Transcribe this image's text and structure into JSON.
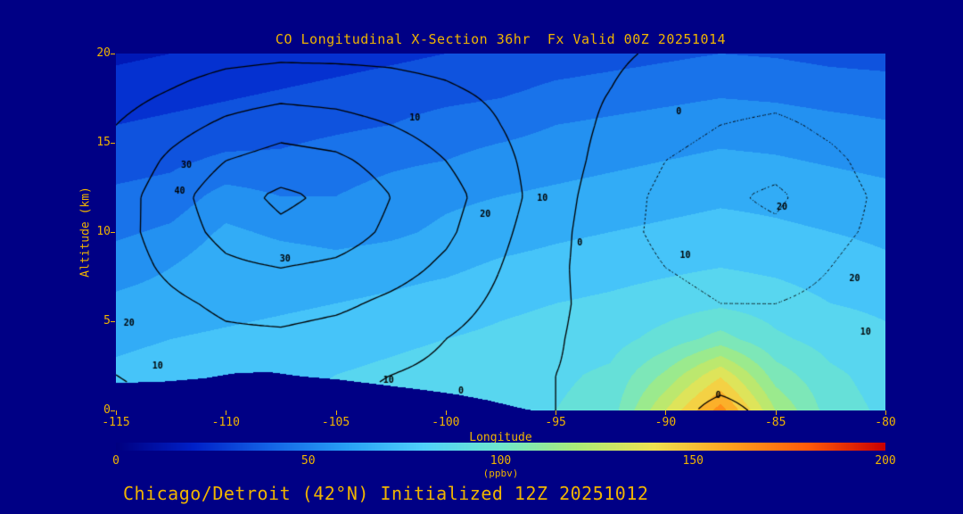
{
  "title": "CO Longitudinal X-Section 36hr  Fx Valid 00Z 20251014",
  "footer": "Chicago/Detroit (42°N) Initialized 12Z 20251012",
  "colors": {
    "background": "#000085",
    "text": "#f0b400",
    "terrain": "#000085",
    "contour_line": "#000000"
  },
  "axes": {
    "xlabel": "Longitude",
    "ylabel": "Altitude (km)",
    "x_ticks": [
      "-115",
      "-110",
      "-105",
      "-100",
      "-95",
      "-90",
      "-85",
      "-80"
    ],
    "y_ticks": [
      "0",
      "5",
      "10",
      "15",
      "20"
    ],
    "x_range": [
      -115,
      -80
    ],
    "y_range": [
      0,
      20
    ]
  },
  "colorbar": {
    "ticks": [
      "0",
      "50",
      "100",
      "150",
      "200"
    ],
    "label": "(ppbv)",
    "range": [
      0,
      200
    ],
    "stops": [
      [
        0,
        "#000080"
      ],
      [
        20,
        "#0020c8"
      ],
      [
        40,
        "#1464e6"
      ],
      [
        60,
        "#28a0f5"
      ],
      [
        80,
        "#50d0fa"
      ],
      [
        100,
        "#6ee6cd"
      ],
      [
        120,
        "#aaeb78"
      ],
      [
        140,
        "#f0e150"
      ],
      [
        160,
        "#ffa01e"
      ],
      [
        180,
        "#ff5a0a"
      ],
      [
        200,
        "#c80000"
      ]
    ]
  },
  "chart_data": {
    "type": "heatmap",
    "title": "CO Longitudinal X-Section 36hr  Fx Valid 00Z 20251014",
    "xlabel": "Longitude",
    "ylabel": "Altitude (km)",
    "x_range": [
      -115,
      -80
    ],
    "y_range": [
      0,
      20
    ],
    "value_units": "ppbv",
    "value_range": [
      0,
      200
    ],
    "x": [
      -115,
      -112.5,
      -110,
      -107.5,
      -105,
      -102.5,
      -100,
      -97.5,
      -95,
      -92.5,
      -90,
      -87.5,
      -85,
      -82.5,
      -80
    ],
    "y": [
      0,
      2,
      4,
      6,
      8,
      10,
      12,
      14,
      16,
      18,
      20
    ],
    "fill_values_ppbv": [
      [
        75,
        78,
        80,
        80,
        82,
        84,
        85,
        88,
        90,
        95,
        130,
        165,
        120,
        95,
        88
      ],
      [
        72,
        74,
        76,
        78,
        80,
        82,
        84,
        86,
        88,
        92,
        112,
        138,
        105,
        92,
        86
      ],
      [
        68,
        70,
        72,
        74,
        76,
        78,
        80,
        82,
        84,
        86,
        94,
        104,
        92,
        86,
        82
      ],
      [
        62,
        64,
        66,
        68,
        70,
        72,
        75,
        78,
        80,
        82,
        85,
        88,
        85,
        80,
        78
      ],
      [
        56,
        60,
        68,
        66,
        64,
        66,
        68,
        72,
        74,
        76,
        78,
        80,
        78,
        75,
        72
      ],
      [
        48,
        52,
        62,
        58,
        56,
        58,
        62,
        65,
        68,
        70,
        72,
        74,
        72,
        70,
        68
      ],
      [
        42,
        44,
        54,
        50,
        50,
        54,
        58,
        60,
        62,
        64,
        66,
        68,
        67,
        65,
        63
      ],
      [
        36,
        38,
        42,
        42,
        45,
        48,
        50,
        54,
        56,
        58,
        60,
        62,
        61,
        59,
        57
      ],
      [
        30,
        32,
        34,
        36,
        38,
        40,
        44,
        46,
        50,
        52,
        54,
        56,
        55,
        53,
        51
      ],
      [
        24,
        26,
        28,
        30,
        32,
        34,
        36,
        38,
        42,
        44,
        46,
        48,
        47,
        45,
        44
      ],
      [
        18,
        20,
        22,
        24,
        26,
        28,
        30,
        32,
        34,
        36,
        38,
        40,
        39,
        37,
        36
      ]
    ],
    "contour_overlay": {
      "levels_solid": [
        0,
        10,
        20,
        30,
        40
      ],
      "levels_dashed": [
        -20,
        -10
      ],
      "values": [
        [
          8,
          10,
          12,
          12,
          10,
          8,
          5,
          2,
          0,
          -2,
          -4,
          3,
          -3,
          -2,
          0
        ],
        [
          10,
          12,
          14,
          14,
          12,
          10,
          8,
          4,
          0,
          -3,
          -5,
          -4,
          -5,
          -4,
          -2
        ],
        [
          12,
          15,
          18,
          18,
          16,
          14,
          10,
          6,
          1,
          -5,
          -7,
          -8,
          -8,
          -6,
          -4
        ],
        [
          14,
          18,
          22,
          24,
          22,
          18,
          14,
          8,
          2,
          -5,
          -8,
          -10,
          -10,
          -8,
          -5
        ],
        [
          15,
          22,
          28,
          30,
          28,
          24,
          18,
          10,
          2,
          -6,
          -10,
          -12,
          -14,
          -10,
          -6
        ],
        [
          16,
          25,
          33,
          38,
          35,
          28,
          22,
          12,
          3,
          -7,
          -12,
          -16,
          -18,
          -12,
          -8
        ],
        [
          15,
          26,
          36,
          42,
          38,
          30,
          24,
          14,
          4,
          -6,
          -12,
          -18,
          -22,
          -14,
          -8
        ],
        [
          12,
          22,
          30,
          34,
          32,
          26,
          20,
          12,
          5,
          -4,
          -10,
          -14,
          -16,
          -12,
          -6
        ],
        [
          10,
          16,
          22,
          26,
          24,
          20,
          16,
          10,
          5,
          -2,
          -6,
          -10,
          -12,
          -8,
          -4
        ],
        [
          6,
          10,
          14,
          16,
          15,
          13,
          11,
          8,
          4,
          0,
          -3,
          -5,
          -6,
          -4,
          -2
        ],
        [
          3,
          5,
          7,
          8,
          8,
          8,
          7,
          5,
          3,
          1,
          -1,
          -2,
          -3,
          -2,
          -1
        ]
      ]
    },
    "terrain_profile": [
      [
        -115,
        1.55
      ],
      [
        -113,
        1.6
      ],
      [
        -111,
        1.8
      ],
      [
        -109.5,
        2.1
      ],
      [
        -108,
        2.15
      ],
      [
        -106.5,
        1.9
      ],
      [
        -105,
        1.75
      ],
      [
        -103,
        1.45
      ],
      [
        -101,
        1.15
      ],
      [
        -99.5,
        0.9
      ],
      [
        -98,
        0.55
      ],
      [
        -97,
        0.25
      ],
      [
        -96.3,
        0.05
      ],
      [
        -96,
        0
      ],
      [
        -80,
        0
      ]
    ],
    "contour_labels": [
      {
        "lon": -101.4,
        "alt": 16.4,
        "text": "10",
        "dashed": false
      },
      {
        "lon": -89.4,
        "alt": 16.75,
        "text": "0",
        "dashed": false
      },
      {
        "lon": -111.8,
        "alt": 13.75,
        "text": "30",
        "dashed": false
      },
      {
        "lon": -112.1,
        "alt": 12.3,
        "text": "40",
        "dashed": false
      },
      {
        "lon": -98.2,
        "alt": 11.0,
        "text": "20",
        "dashed": false
      },
      {
        "lon": -95.6,
        "alt": 11.9,
        "text": "10",
        "dashed": false
      },
      {
        "lon": -107.3,
        "alt": 8.5,
        "text": "30",
        "dashed": false
      },
      {
        "lon": -93.9,
        "alt": 9.4,
        "text": "0",
        "dashed": false
      },
      {
        "lon": -84.7,
        "alt": 11.4,
        "text": "20",
        "dashed": true
      },
      {
        "lon": -89.1,
        "alt": 8.7,
        "text": "10",
        "dashed": true
      },
      {
        "lon": -81.4,
        "alt": 7.4,
        "text": "20",
        "dashed": true
      },
      {
        "lon": -80.9,
        "alt": 4.4,
        "text": "10",
        "dashed": true
      },
      {
        "lon": -114.4,
        "alt": 4.9,
        "text": "20",
        "dashed": false
      },
      {
        "lon": -113.1,
        "alt": 2.5,
        "text": "10",
        "dashed": false
      },
      {
        "lon": -102.6,
        "alt": 1.7,
        "text": "10",
        "dashed": false
      },
      {
        "lon": -99.3,
        "alt": 1.1,
        "text": "0",
        "dashed": false
      },
      {
        "lon": -87.6,
        "alt": 0.85,
        "text": "0",
        "dashed": false
      }
    ]
  }
}
